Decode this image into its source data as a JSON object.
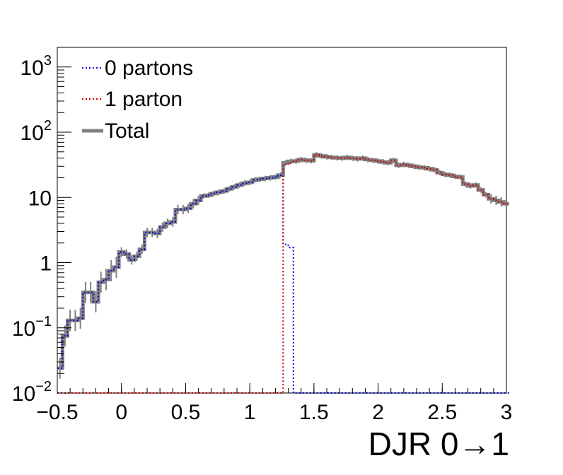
{
  "chart_data": {
    "type": "line",
    "title": "",
    "xlabel": "DJR 0→1",
    "ylabel": "",
    "xlim": [
      -0.5,
      3.0
    ],
    "ylim": [
      0.01,
      2000
    ],
    "yscale": "log",
    "grid": false,
    "legend_position": "top-left",
    "x_ticks": [
      "−0.5",
      "0",
      "0.5",
      "1",
      "1.5",
      "2",
      "2.5",
      "3"
    ],
    "x_tick_values": [
      -0.5,
      0,
      0.5,
      1,
      1.5,
      2,
      2.5,
      3
    ],
    "y_ticks": [
      {
        "value": 0.01,
        "base": "10",
        "exp": "−2"
      },
      {
        "value": 0.1,
        "base": "10",
        "exp": "−1"
      },
      {
        "value": 1,
        "base": "1",
        "exp": ""
      },
      {
        "value": 10,
        "base": "10",
        "exp": ""
      },
      {
        "value": 100,
        "base": "10",
        "exp": "2"
      },
      {
        "value": 1000,
        "base": "10",
        "exp": "3"
      }
    ],
    "bin_edges_start": -0.5,
    "bin_width": 0.04,
    "series": [
      {
        "name": "0 partons",
        "color": "#0000cc",
        "style": "dotted",
        "values": [
          0.024,
          0.075,
          0.13,
          0.13,
          0.14,
          0.35,
          0.35,
          0.25,
          0.5,
          0.55,
          0.75,
          0.85,
          1.45,
          1.35,
          1.1,
          1.25,
          1.6,
          2.9,
          2.9,
          2.8,
          3.5,
          4.0,
          4.2,
          6.5,
          6.5,
          6.8,
          8.0,
          9.0,
          10.5,
          10.8,
          11.5,
          12.0,
          12.5,
          13.5,
          14.5,
          15.5,
          16.5,
          17.0,
          18.5,
          19.0,
          19.5,
          20.0,
          20.5,
          22.0,
          1.9,
          1.7,
          0.01,
          0.01,
          0.01,
          0.01,
          0.01,
          0.01,
          0.01,
          0.01,
          0.01,
          0.01,
          0.01,
          0.01,
          0.01,
          0.01,
          0.01,
          0.01,
          0.01,
          0.01,
          0.01,
          0.01,
          0.01,
          0.01,
          0.01,
          0.01,
          0.01,
          0.01,
          0.01,
          0.01,
          0.01,
          0.01,
          0.01,
          0.01,
          0.01,
          0.01,
          0.01,
          0.01,
          0.01,
          0.01,
          0.01,
          0.01,
          0.01,
          0.01
        ]
      },
      {
        "name": "1 parton",
        "color": "#cc0000",
        "style": "dotted",
        "values": [
          0.01,
          0.01,
          0.01,
          0.01,
          0.01,
          0.01,
          0.01,
          0.01,
          0.01,
          0.01,
          0.01,
          0.01,
          0.01,
          0.01,
          0.01,
          0.01,
          0.01,
          0.01,
          0.01,
          0.01,
          0.01,
          0.01,
          0.01,
          0.01,
          0.01,
          0.01,
          0.01,
          0.01,
          0.01,
          0.01,
          0.01,
          0.01,
          0.01,
          0.01,
          0.01,
          0.01,
          0.01,
          0.01,
          0.01,
          0.01,
          0.01,
          0.01,
          0.01,
          0.01,
          32.0,
          34.0,
          36.0,
          38.0,
          37.0,
          36.5,
          45.0,
          43.0,
          42.0,
          41.0,
          40.5,
          40.0,
          41.0,
          40.0,
          39.0,
          40.0,
          38.0,
          37.0,
          36.0,
          35.0,
          34.0,
          37.0,
          31.0,
          32.0,
          31.0,
          30.0,
          29.0,
          28.5,
          27.5,
          26.5,
          24.0,
          22.5,
          22.0,
          21.0,
          20.5,
          16.0,
          15.0,
          15.5,
          13.0,
          11.0,
          9.5,
          9.0,
          8.5,
          8.0
        ]
      },
      {
        "name": "Total",
        "color": "#808080",
        "style": "solid",
        "values": [
          0.024,
          0.075,
          0.13,
          0.13,
          0.14,
          0.35,
          0.35,
          0.25,
          0.5,
          0.55,
          0.75,
          0.85,
          1.45,
          1.35,
          1.1,
          1.25,
          1.6,
          2.9,
          2.9,
          2.8,
          3.5,
          4.0,
          4.2,
          6.5,
          6.5,
          6.8,
          8.0,
          9.0,
          10.5,
          10.8,
          11.5,
          12.0,
          12.5,
          13.5,
          14.5,
          15.5,
          16.5,
          17.0,
          18.5,
          19.0,
          19.5,
          20.0,
          20.5,
          22.0,
          33.9,
          35.7,
          36.0,
          38.0,
          37.0,
          36.5,
          45.0,
          43.0,
          42.0,
          41.0,
          40.5,
          40.0,
          41.0,
          40.0,
          39.0,
          40.0,
          38.0,
          37.0,
          36.0,
          35.0,
          34.0,
          37.0,
          31.0,
          32.0,
          31.0,
          30.0,
          29.0,
          28.5,
          27.5,
          26.5,
          24.0,
          22.5,
          22.0,
          21.0,
          20.5,
          16.0,
          15.0,
          15.5,
          13.0,
          11.0,
          9.5,
          9.0,
          8.5,
          8.0
        ]
      }
    ]
  }
}
